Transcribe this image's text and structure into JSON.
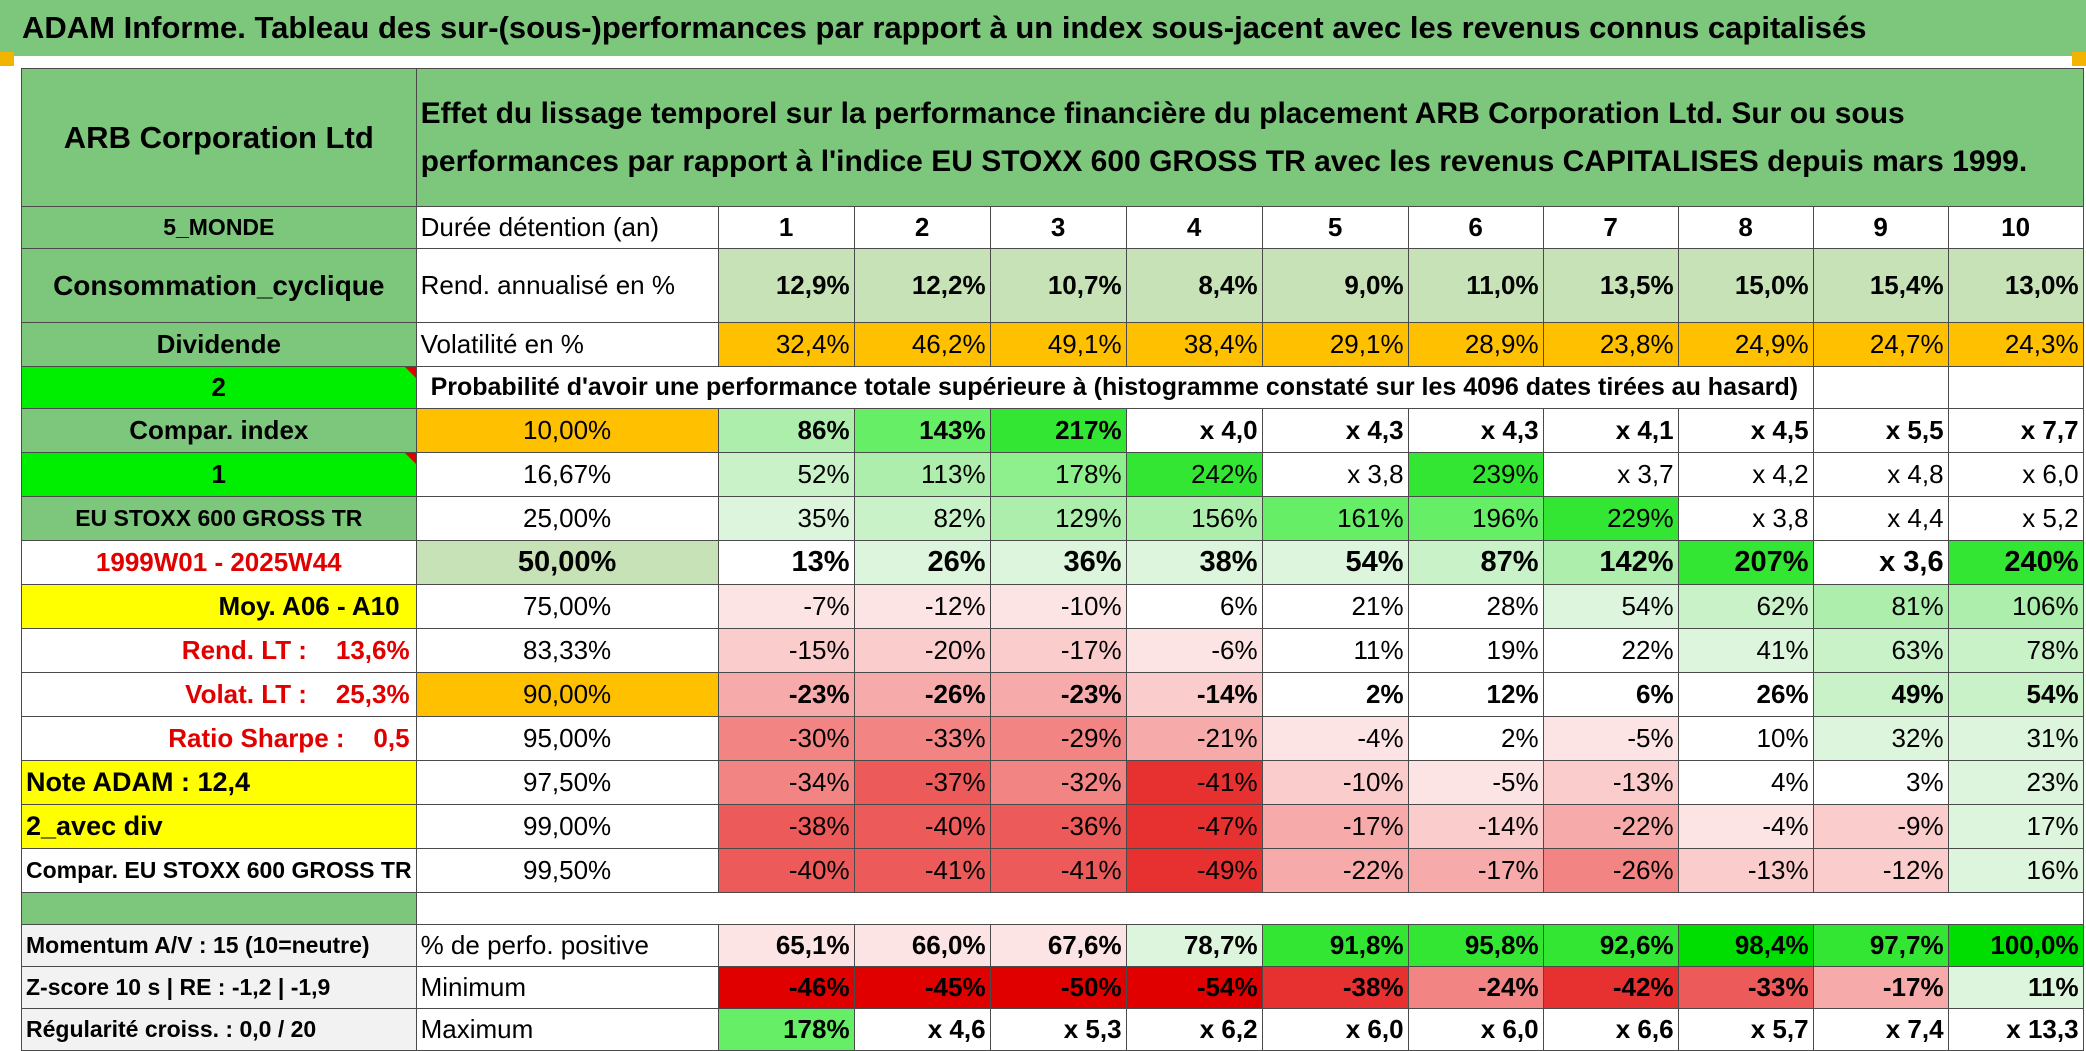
{
  "banner": "ADAM Informe. Tableau des sur-(sous-)performances par rapport à un index sous-jacent avec les revenus connus capitalisés",
  "header": {
    "company": "ARB Corporation Ltd",
    "description": "Effet du lissage temporel sur la performance financière du placement ARB Corporation Ltd. Sur ou sous performances par rapport à l'indice EU STOXX 600 GROSS TR avec les revenus CAPITALISES depuis mars 1999."
  },
  "info": {
    "region": "5_MONDE",
    "sector": "Consommation_cyclique",
    "dividend_label": "Dividende",
    "dividend_value": "2",
    "compar_index_label": "Compar. index",
    "compar_index_value": "1",
    "index_name": "EU STOXX 600 GROSS TR",
    "period": "1999W01 - 2025W44",
    "moy": "Moy. A06 - A10",
    "rend_lt": "Rend. LT :    13,6%",
    "volat_lt": "Volat. LT :    25,3%",
    "sharpe": "Ratio Sharpe :    0,5",
    "note": "Note ADAM : 12,4",
    "div": "2_avec div",
    "compar": "Compar. EU STOXX 600 GROSS TR"
  },
  "holding": {
    "label": "Durée détention (an)",
    "years": [
      "1",
      "2",
      "3",
      "4",
      "5",
      "6",
      "7",
      "8",
      "9",
      "10"
    ]
  },
  "rend": {
    "label": "Rend. annualisé en %",
    "values": [
      "12,9%",
      "12,2%",
      "10,7%",
      "8,4%",
      "9,0%",
      "11,0%",
      "13,5%",
      "15,0%",
      "15,4%",
      "13,0%"
    ]
  },
  "vol": {
    "label": "Volatilité en %",
    "values": [
      "32,4%",
      "46,2%",
      "49,1%",
      "38,4%",
      "29,1%",
      "28,9%",
      "23,8%",
      "24,9%",
      "24,7%",
      "24,3%"
    ]
  },
  "prob_title": "Probabilité d'avoir une performance totale supérieure à (histogramme constaté sur les 4096 dates tirées au hasard)",
  "quantiles": [
    {
      "p": "10,00%",
      "v": [
        "86%",
        "143%",
        "217%",
        "x 4,0",
        "x 4,3",
        "x 4,3",
        "x 4,1",
        "x 4,5",
        "x 5,5",
        "x 7,7"
      ]
    },
    {
      "p": "16,67%",
      "v": [
        "52%",
        "113%",
        "178%",
        "242%",
        "x 3,8",
        "239%",
        "x 3,7",
        "x 4,2",
        "x 4,8",
        "x 6,0"
      ]
    },
    {
      "p": "25,00%",
      "v": [
        "35%",
        "82%",
        "129%",
        "156%",
        "161%",
        "196%",
        "229%",
        "x 3,8",
        "x 4,4",
        "x 5,2"
      ]
    },
    {
      "p": "50,00%",
      "v": [
        "13%",
        "26%",
        "36%",
        "38%",
        "54%",
        "87%",
        "142%",
        "207%",
        "x 3,6",
        "240%"
      ]
    },
    {
      "p": "75,00%",
      "v": [
        "-7%",
        "-12%",
        "-10%",
        "6%",
        "21%",
        "28%",
        "54%",
        "62%",
        "81%",
        "106%"
      ]
    },
    {
      "p": "83,33%",
      "v": [
        "-15%",
        "-20%",
        "-17%",
        "-6%",
        "11%",
        "19%",
        "22%",
        "41%",
        "63%",
        "78%"
      ]
    },
    {
      "p": "90,00%",
      "v": [
        "-23%",
        "-26%",
        "-23%",
        "-14%",
        "2%",
        "12%",
        "6%",
        "26%",
        "49%",
        "54%"
      ]
    },
    {
      "p": "95,00%",
      "v": [
        "-30%",
        "-33%",
        "-29%",
        "-21%",
        "-4%",
        "2%",
        "-5%",
        "10%",
        "32%",
        "31%"
      ]
    },
    {
      "p": "97,50%",
      "v": [
        "-34%",
        "-37%",
        "-32%",
        "-41%",
        "-10%",
        "-5%",
        "-13%",
        "4%",
        "3%",
        "23%"
      ]
    },
    {
      "p": "99,00%",
      "v": [
        "-38%",
        "-40%",
        "-36%",
        "-47%",
        "-17%",
        "-14%",
        "-22%",
        "-4%",
        "-9%",
        "17%"
      ]
    },
    {
      "p": "99,50%",
      "v": [
        "-40%",
        "-41%",
        "-41%",
        "-49%",
        "-22%",
        "-17%",
        "-26%",
        "-13%",
        "-12%",
        "16%"
      ]
    }
  ],
  "bottom": [
    {
      "left": "Momentum A/V : 15 (10=neutre)",
      "label": "% de perfo. positive",
      "v": [
        "65,1%",
        "66,0%",
        "67,6%",
        "78,7%",
        "91,8%",
        "95,8%",
        "92,6%",
        "98,4%",
        "97,7%",
        "100,0%"
      ]
    },
    {
      "left": "Z-score 10 s | RE : -1,2 | -1,9",
      "label": "Minimum",
      "v": [
        "-46%",
        "-45%",
        "-50%",
        "-54%",
        "-38%",
        "-24%",
        "-42%",
        "-33%",
        "-17%",
        "11%"
      ]
    },
    {
      "left": "Régularité croiss. : 0,0 / 20",
      "label": "Maximum",
      "v": [
        "178%",
        "x 4,6",
        "x 5,3",
        "x 6,2",
        "x 6,0",
        "x 6,0",
        "x 6,6",
        "x 5,7",
        "x 7,4",
        "x 13,3"
      ]
    }
  ],
  "colors": {
    "header_green": "#7dc77d",
    "light_green": "#c6e2b6",
    "orange": "#ffc000",
    "yellow": "#ffff00",
    "bright_green": "#00ee00",
    "label_red": "#e00000"
  }
}
